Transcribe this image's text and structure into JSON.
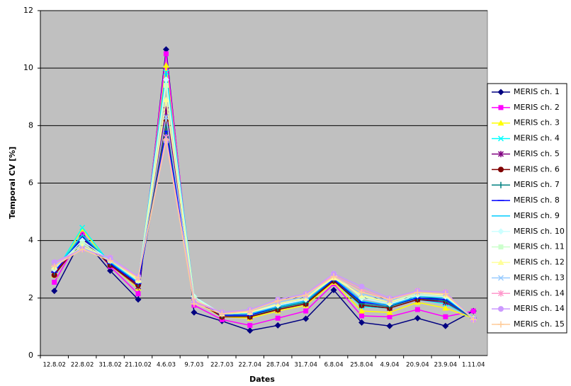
{
  "chart_data": {
    "type": "line",
    "x_label": "Dates",
    "y_label": "Temporal CV [%]",
    "categories": [
      "12.8.02",
      "22.8.02",
      "31.8.02",
      "21.10.02",
      "4.6.03",
      "9.7.03",
      "22.7.03",
      "22.7.04",
      "28.7.04",
      "31.7.04",
      "6.8.04",
      "25.8.04",
      "4.9.04",
      "20.9.04",
      "23.9.04",
      "1.11.04"
    ],
    "ylim": [
      0,
      12
    ],
    "yticks": [
      0,
      2,
      4,
      6,
      8,
      10,
      12
    ],
    "grid": true,
    "legend": "right",
    "series": [
      {
        "name": "MERIS ch. 1",
        "color": "#000080",
        "marker": "diamond",
        "values": [
          2.25,
          4.1,
          2.95,
          1.95,
          10.65,
          1.5,
          1.2,
          0.87,
          1.05,
          1.28,
          2.28,
          1.15,
          1.03,
          1.3,
          1.03,
          1.55
        ]
      },
      {
        "name": "MERIS ch. 2",
        "color": "#ff00ff",
        "marker": "square",
        "values": [
          2.55,
          4.25,
          3.1,
          2.15,
          10.5,
          1.75,
          1.25,
          1.05,
          1.3,
          1.55,
          2.5,
          1.38,
          1.35,
          1.6,
          1.35,
          1.55
        ]
      },
      {
        "name": "MERIS ch. 3",
        "color": "#ffff00",
        "marker": "triangle",
        "values": [
          2.8,
          4.4,
          3.15,
          2.35,
          10.1,
          1.9,
          1.35,
          1.3,
          1.55,
          1.75,
          2.55,
          1.55,
          1.5,
          1.85,
          1.65,
          1.3
        ]
      },
      {
        "name": "MERIS ch. 4",
        "color": "#00ffff",
        "marker": "x",
        "values": [
          2.85,
          4.45,
          3.2,
          2.4,
          9.85,
          2.0,
          1.4,
          1.35,
          1.65,
          1.85,
          2.6,
          1.7,
          1.65,
          1.95,
          1.8,
          1.3
        ]
      },
      {
        "name": "MERIS ch. 5",
        "color": "#800080",
        "marker": "star",
        "values": [
          2.85,
          4.1,
          3.15,
          2.4,
          8.55,
          1.95,
          1.35,
          1.35,
          1.6,
          1.8,
          2.6,
          1.75,
          1.65,
          1.95,
          1.85,
          1.3
        ]
      },
      {
        "name": "MERIS ch. 6",
        "color": "#800000",
        "marker": "circle",
        "values": [
          2.8,
          4.05,
          3.15,
          2.45,
          8.2,
          1.95,
          1.35,
          1.35,
          1.6,
          1.8,
          2.6,
          1.75,
          1.65,
          1.95,
          1.9,
          1.3
        ]
      },
      {
        "name": "MERIS ch. 7",
        "color": "#008080",
        "marker": "plus",
        "values": [
          2.9,
          4.15,
          3.2,
          2.5,
          7.95,
          2.0,
          1.4,
          1.4,
          1.65,
          1.85,
          2.65,
          1.8,
          1.7,
          2.0,
          1.9,
          1.3
        ]
      },
      {
        "name": "MERIS ch. 8",
        "color": "#0000ff",
        "marker": "dash",
        "values": [
          2.9,
          4.1,
          3.2,
          2.5,
          7.8,
          2.0,
          1.4,
          1.4,
          1.7,
          1.9,
          2.65,
          1.85,
          1.75,
          2.0,
          1.95,
          1.3
        ]
      },
      {
        "name": "MERIS ch. 9",
        "color": "#00ccff",
        "marker": "none",
        "values": [
          2.95,
          4.2,
          3.25,
          2.55,
          9.9,
          2.05,
          1.45,
          1.45,
          1.7,
          1.9,
          2.7,
          1.9,
          1.75,
          2.05,
          2.0,
          1.3
        ]
      },
      {
        "name": "MERIS ch. 10",
        "color": "#ccffff",
        "marker": "diamond",
        "values": [
          3.0,
          4.0,
          3.3,
          2.6,
          9.6,
          2.05,
          1.45,
          1.5,
          1.75,
          1.95,
          2.85,
          2.0,
          1.8,
          2.1,
          2.05,
          1.3
        ]
      },
      {
        "name": "MERIS ch. 11",
        "color": "#ccffcc",
        "marker": "square",
        "values": [
          3.05,
          3.9,
          3.3,
          2.6,
          9.4,
          2.0,
          1.45,
          1.5,
          1.8,
          2.0,
          2.75,
          2.05,
          1.85,
          2.15,
          2.1,
          1.3
        ]
      },
      {
        "name": "MERIS ch. 12",
        "color": "#ffff99",
        "marker": "triangle",
        "values": [
          3.1,
          3.8,
          3.35,
          2.65,
          8.9,
          1.95,
          1.45,
          1.5,
          1.8,
          2.0,
          2.7,
          2.1,
          1.85,
          2.2,
          2.1,
          1.3
        ]
      },
      {
        "name": "MERIS ch. 13",
        "color": "#99ccff",
        "marker": "x",
        "values": [
          3.15,
          3.75,
          3.35,
          2.7,
          8.3,
          1.9,
          1.5,
          1.55,
          1.85,
          2.05,
          2.8,
          2.15,
          1.9,
          2.2,
          2.15,
          1.3
        ]
      },
      {
        "name": "MERIS ch. 14",
        "color": "#ff99cc",
        "marker": "star",
        "values": [
          3.2,
          3.7,
          3.4,
          2.7,
          7.6,
          1.9,
          1.5,
          1.55,
          1.9,
          2.1,
          2.8,
          2.3,
          1.95,
          2.25,
          2.2,
          1.25
        ]
      },
      {
        "name": "MERIS ch. 14",
        "color": "#cc99ff",
        "marker": "circle",
        "values": [
          3.25,
          3.7,
          3.4,
          2.75,
          7.45,
          1.85,
          1.5,
          1.6,
          1.95,
          2.15,
          2.85,
          2.4,
          2.0,
          2.25,
          2.2,
          1.25
        ]
      },
      {
        "name": "MERIS ch. 15",
        "color": "#ffcc99",
        "marker": "plus",
        "values": [
          3.1,
          3.7,
          3.3,
          2.7,
          7.5,
          1.8,
          1.45,
          1.55,
          1.9,
          2.1,
          2.75,
          2.2,
          1.95,
          2.2,
          2.15,
          1.25
        ]
      }
    ]
  }
}
